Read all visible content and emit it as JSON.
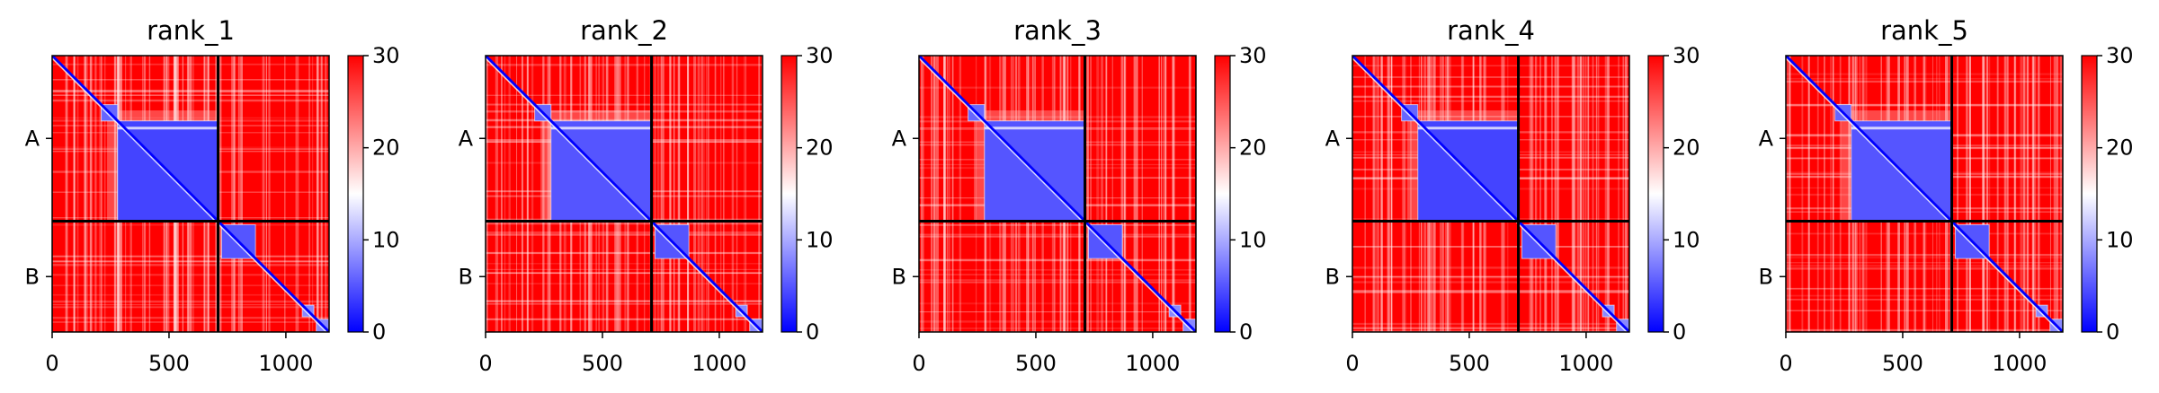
{
  "chart_data": [
    {
      "type": "heatmap",
      "title": "rank_1",
      "xlabel": "",
      "ylabel": "",
      "xlim": [
        0,
        1185
      ],
      "x_ticks": [
        0,
        500,
        1000
      ],
      "x_tick_labels": [
        "0",
        "500",
        "1000"
      ],
      "y_tick_labels": [
        "A",
        "B"
      ],
      "chain_boundary": 710,
      "colorbar": {
        "min": 0,
        "max": 30,
        "ticks": [
          0,
          10,
          20,
          30
        ],
        "tick_labels": [
          "0",
          "10",
          "20",
          "30"
        ],
        "colors": [
          "#0000ff",
          "#ffffff",
          "#ff0000"
        ]
      },
      "low_value_blocks": [
        {
          "start": 210,
          "end": 280,
          "value": 6
        },
        {
          "start": 280,
          "end": 710,
          "value": 4
        },
        {
          "start": 725,
          "end": 870,
          "value": 5
        },
        {
          "start": 1070,
          "end": 1120,
          "value": 8
        },
        {
          "start": 1130,
          "end": 1185,
          "value": 8
        }
      ],
      "diagonal_value": 0
    },
    {
      "type": "heatmap",
      "title": "rank_2",
      "xlabel": "",
      "ylabel": "",
      "xlim": [
        0,
        1185
      ],
      "x_ticks": [
        0,
        500,
        1000
      ],
      "x_tick_labels": [
        "0",
        "500",
        "1000"
      ],
      "y_tick_labels": [
        "A",
        "B"
      ],
      "chain_boundary": 710,
      "colorbar": {
        "min": 0,
        "max": 30,
        "ticks": [
          0,
          10,
          20,
          30
        ],
        "tick_labels": [
          "0",
          "10",
          "20",
          "30"
        ],
        "colors": [
          "#0000ff",
          "#ffffff",
          "#ff0000"
        ]
      },
      "low_value_blocks": [
        {
          "start": 210,
          "end": 280,
          "value": 6
        },
        {
          "start": 280,
          "end": 710,
          "value": 5
        },
        {
          "start": 725,
          "end": 870,
          "value": 5
        },
        {
          "start": 1070,
          "end": 1120,
          "value": 8
        },
        {
          "start": 1130,
          "end": 1185,
          "value": 8
        }
      ],
      "diagonal_value": 0
    },
    {
      "type": "heatmap",
      "title": "rank_3",
      "xlabel": "",
      "ylabel": "",
      "xlim": [
        0,
        1185
      ],
      "x_ticks": [
        0,
        500,
        1000
      ],
      "x_tick_labels": [
        "0",
        "500",
        "1000"
      ],
      "y_tick_labels": [
        "A",
        "B"
      ],
      "chain_boundary": 710,
      "colorbar": {
        "min": 0,
        "max": 30,
        "ticks": [
          0,
          10,
          20,
          30
        ],
        "tick_labels": [
          "0",
          "10",
          "20",
          "30"
        ],
        "colors": [
          "#0000ff",
          "#ffffff",
          "#ff0000"
        ]
      },
      "low_value_blocks": [
        {
          "start": 210,
          "end": 280,
          "value": 6
        },
        {
          "start": 280,
          "end": 710,
          "value": 5
        },
        {
          "start": 725,
          "end": 870,
          "value": 5
        },
        {
          "start": 1070,
          "end": 1120,
          "value": 8
        },
        {
          "start": 1130,
          "end": 1185,
          "value": 8
        }
      ],
      "diagonal_value": 0
    },
    {
      "type": "heatmap",
      "title": "rank_4",
      "xlabel": "",
      "ylabel": "",
      "xlim": [
        0,
        1185
      ],
      "x_ticks": [
        0,
        500,
        1000
      ],
      "x_tick_labels": [
        "0",
        "500",
        "1000"
      ],
      "y_tick_labels": [
        "A",
        "B"
      ],
      "chain_boundary": 710,
      "colorbar": {
        "min": 0,
        "max": 30,
        "ticks": [
          0,
          10,
          20,
          30
        ],
        "tick_labels": [
          "0",
          "10",
          "20",
          "30"
        ],
        "colors": [
          "#0000ff",
          "#ffffff",
          "#ff0000"
        ]
      },
      "low_value_blocks": [
        {
          "start": 210,
          "end": 280,
          "value": 6
        },
        {
          "start": 280,
          "end": 710,
          "value": 4
        },
        {
          "start": 725,
          "end": 870,
          "value": 5
        },
        {
          "start": 1070,
          "end": 1120,
          "value": 8
        },
        {
          "start": 1130,
          "end": 1185,
          "value": 8
        }
      ],
      "diagonal_value": 0
    },
    {
      "type": "heatmap",
      "title": "rank_5",
      "xlabel": "",
      "ylabel": "",
      "xlim": [
        0,
        1185
      ],
      "x_ticks": [
        0,
        500,
        1000
      ],
      "x_tick_labels": [
        "0",
        "500",
        "1000"
      ],
      "y_tick_labels": [
        "A",
        "B"
      ],
      "chain_boundary": 710,
      "colorbar": {
        "min": 0,
        "max": 30,
        "ticks": [
          0,
          10,
          20,
          30
        ],
        "tick_labels": [
          "0",
          "10",
          "20",
          "30"
        ],
        "colors": [
          "#0000ff",
          "#ffffff",
          "#ff0000"
        ]
      },
      "low_value_blocks": [
        {
          "start": 210,
          "end": 280,
          "value": 6
        },
        {
          "start": 280,
          "end": 710,
          "value": 5
        },
        {
          "start": 725,
          "end": 870,
          "value": 5
        },
        {
          "start": 1070,
          "end": 1120,
          "value": 8
        },
        {
          "start": 1130,
          "end": 1185,
          "value": 8
        }
      ],
      "diagonal_value": 0
    }
  ]
}
